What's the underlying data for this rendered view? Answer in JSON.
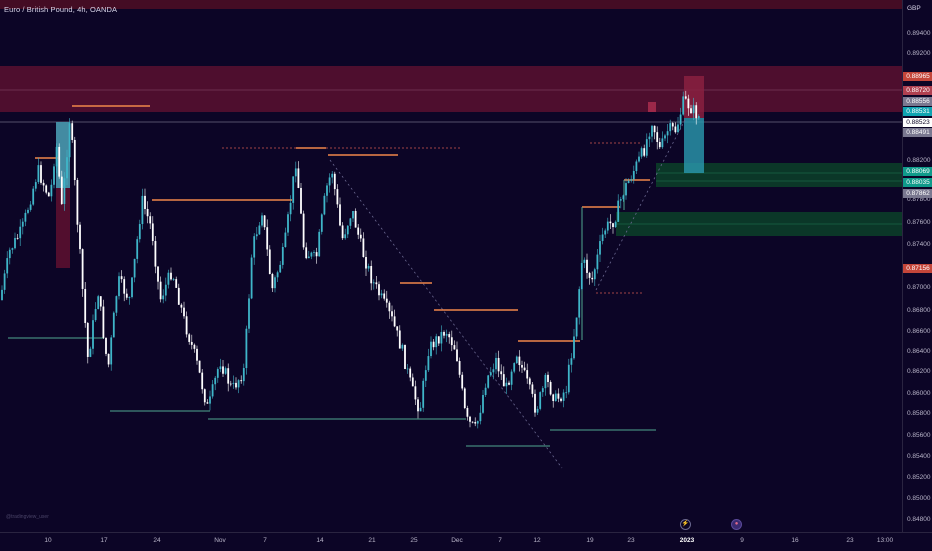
{
  "header": {
    "title": "Euro / British Pound, 4h, OANDA",
    "currency": "GBP"
  },
  "watermark": "@tradingview_user",
  "price_axis": {
    "labels": [
      "0.89400",
      "0.89200",
      "0.88200",
      "0.87800",
      "0.87600",
      "0.87400",
      "0.87000",
      "0.86800",
      "0.86600",
      "0.86400",
      "0.86200",
      "0.86000",
      "0.85800",
      "0.85600",
      "0.85400",
      "0.85200",
      "0.85000",
      "0.84800"
    ],
    "tags": [
      {
        "text": "0.88965",
        "color": "#c4463a"
      },
      {
        "text": "0.88720",
        "color": "#b04050"
      },
      {
        "text": "0.88556",
        "color": "#7a7890"
      },
      {
        "text": "0.88531",
        "color": "#0fa3b1"
      },
      {
        "text": "0.88523",
        "color": "#ffffff"
      },
      {
        "text": "0.88491",
        "color": "#7a7890"
      },
      {
        "text": "0.88069",
        "color": "#0f9a8a"
      },
      {
        "text": "0.88035",
        "color": "#0f9a8a"
      },
      {
        "text": "0.87862",
        "color": "#7a7890"
      },
      {
        "text": "0.87156",
        "color": "#c4463a"
      }
    ]
  },
  "time_axis": {
    "labels": [
      {
        "text": "10",
        "bold": false
      },
      {
        "text": "17",
        "bold": false
      },
      {
        "text": "24",
        "bold": false
      },
      {
        "text": "Nov",
        "bold": false
      },
      {
        "text": "7",
        "bold": false
      },
      {
        "text": "14",
        "bold": false
      },
      {
        "text": "21",
        "bold": false
      },
      {
        "text": "25",
        "bold": false
      },
      {
        "text": "Dec",
        "bold": false
      },
      {
        "text": "7",
        "bold": false
      },
      {
        "text": "12",
        "bold": false
      },
      {
        "text": "19",
        "bold": false
      },
      {
        "text": "23",
        "bold": false
      },
      {
        "text": "2023",
        "bold": true
      },
      {
        "text": "9",
        "bold": false
      },
      {
        "text": "16",
        "bold": false
      },
      {
        "text": "23",
        "bold": false
      },
      {
        "text": "13:00",
        "bold": false
      }
    ],
    "event_icons": [
      "lightning-icon",
      "flag-icon"
    ]
  },
  "colors": {
    "background": "#0c0526",
    "candle_up": "#3fb6c9",
    "candle_down": "#ffffff",
    "resistance": "#f0874a",
    "support": "#4fa890",
    "supply_zone": "#6b1230",
    "demand_zone": "#0f4a30"
  }
}
